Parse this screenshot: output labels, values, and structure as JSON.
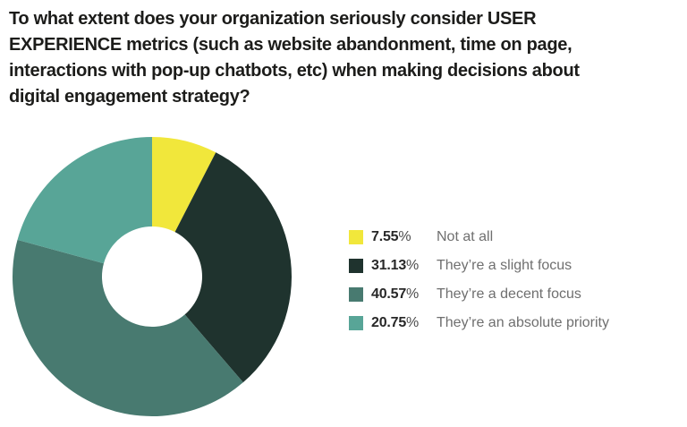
{
  "page": {
    "background": "#ffffff"
  },
  "title": {
    "text": "To what extent does your organization seriously consider USER EXPERIENCE metrics (such as website abandonment, time on page, interactions with pop-up chatbots, etc) when making decisions about digital engagement strategy?",
    "lines": [
      "To what extent does your organization seriously consider USER",
      "EXPERIENCE metrics (such as website abandonment, time on page,",
      "interactions with pop-up chatbots, etc) when making decisions about",
      "digital engagement strategy?"
    ]
  },
  "chart_data": {
    "type": "pie",
    "subtype": "donut",
    "title": "",
    "start_angle_deg": 0,
    "direction": "clockwise",
    "inner_radius_ratio": 0.36,
    "legend_position": "right",
    "categories": [
      "Not at all",
      "They’re a slight focus",
      "They’re a decent focus",
      "They’re an absolute priority"
    ],
    "values": [
      7.55,
      31.13,
      40.57,
      20.75
    ],
    "value_labels": [
      "7.55%",
      "31.13%",
      "40.57%",
      "20.75%"
    ],
    "colors": [
      "#F1E73B",
      "#1F332E",
      "#487A70",
      "#58A597"
    ]
  }
}
